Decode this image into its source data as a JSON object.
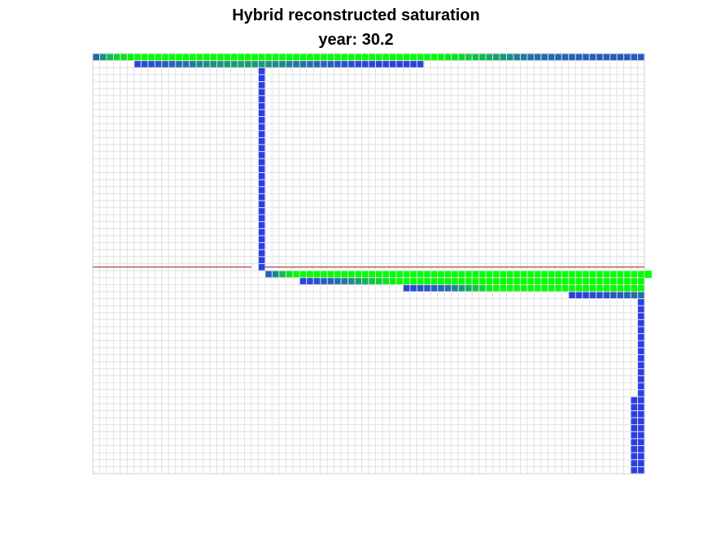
{
  "chart_data": {
    "type": "heatmap",
    "title": "Hybrid reconstructed saturation",
    "subtitle": "year: 30.2",
    "grid": true,
    "grid_cells": {
      "cols": 80,
      "rows": 60
    },
    "colors": {
      "grid_line": "#e1e1e1",
      "grid_border": "#d0d0d0",
      "low_saturation": "#2b3ee6",
      "mid_saturation": "#1f78a0",
      "high_saturation": "#00ff00",
      "fault_line": "#a01010"
    },
    "saturation_regions": [
      {
        "name": "top-layer",
        "row": 0,
        "col_start": 0,
        "values": [
          0.35,
          0.6,
          0.75,
          0.85,
          0.9,
          0.95,
          1,
          1,
          1,
          1,
          1,
          1,
          1,
          1,
          1,
          1,
          1,
          1,
          1,
          1,
          1,
          1,
          1,
          1,
          1,
          1,
          1,
          1,
          1,
          1,
          1,
          1,
          1,
          1,
          1,
          1,
          1,
          1,
          1,
          1,
          1,
          1,
          1,
          1,
          1,
          1,
          1,
          1,
          1,
          1,
          0.97,
          0.93,
          0.9,
          0.86,
          0.82,
          0.78,
          0.74,
          0.7,
          0.66,
          0.62,
          0.58,
          0.54,
          0.5,
          0.47,
          0.44,
          0.41,
          0.38,
          0.36,
          0.34,
          0.32,
          0.31,
          0.3,
          0.29,
          0.28,
          0.27,
          0.26,
          0.25,
          0.25,
          0.25,
          0.25
        ]
      },
      {
        "name": "top-layer-second-row",
        "row": 1,
        "col_start": 6,
        "values": [
          0.05,
          0.1,
          0.16,
          0.22,
          0.28,
          0.34,
          0.4,
          0.45,
          0.5,
          0.55,
          0.58,
          0.6,
          0.62,
          0.63,
          0.64,
          0.65,
          0.64,
          0.63,
          0.62,
          0.6,
          0.58,
          0.56,
          0.53,
          0.5,
          0.46,
          0.42,
          0.38,
          0.33,
          0.28,
          0.23,
          0.18,
          0.14,
          0.1,
          0.07,
          0.04,
          0.02,
          0.01,
          0.01,
          0.01,
          0.01,
          0.01,
          0.01
        ]
      },
      {
        "name": "vertical-column",
        "col": 24,
        "row_start": 2,
        "row_end": 30,
        "value": 0.0
      },
      {
        "name": "mid-layer-1",
        "row": 31,
        "col_start": 25,
        "values": [
          0.3,
          0.55,
          0.75,
          0.9,
          1,
          1,
          1,
          1,
          1,
          1,
          1,
          1,
          1,
          1,
          1,
          1,
          1,
          1,
          1,
          1,
          1,
          1,
          1,
          1,
          1,
          1,
          1,
          1,
          1,
          1,
          1,
          1,
          1,
          1,
          1,
          1,
          1,
          1,
          1,
          1,
          1,
          1,
          1,
          1,
          1,
          1,
          1,
          1,
          1,
          1,
          1,
          1,
          1,
          1,
          1,
          1
        ]
      },
      {
        "name": "mid-layer-2",
        "row": 32,
        "col_start": 30,
        "values": [
          0.05,
          0.1,
          0.18,
          0.26,
          0.34,
          0.42,
          0.5,
          0.58,
          0.65,
          0.72,
          0.78,
          0.84,
          0.9,
          0.95,
          1,
          1,
          1,
          1,
          1,
          1,
          1,
          1,
          1,
          1,
          1,
          1,
          1,
          1,
          1,
          1,
          1,
          1,
          1,
          1,
          1,
          1,
          1,
          1,
          1,
          1,
          1,
          1,
          1,
          1,
          1,
          1,
          1,
          1,
          1,
          1
        ]
      },
      {
        "name": "mid-layer-3",
        "row": 33,
        "col_start": 45,
        "values": [
          0.05,
          0.1,
          0.16,
          0.22,
          0.3,
          0.38,
          0.46,
          0.54,
          0.62,
          0.7,
          0.78,
          0.86,
          0.94,
          1,
          1,
          1,
          1,
          1,
          1,
          1,
          1,
          1,
          1,
          1,
          1,
          1,
          1,
          1,
          1,
          1,
          1,
          1,
          1,
          1,
          1
        ]
      },
      {
        "name": "mid-layer-4",
        "row": 34,
        "col_start": 69,
        "values": [
          0.02,
          0.04,
          0.07,
          0.1,
          0.14,
          0.18,
          0.23,
          0.28,
          0.33,
          0.38,
          0.42
        ]
      },
      {
        "name": "right-column-a",
        "col": 79,
        "row_start": 35,
        "row_end": 59,
        "value": 0.0
      },
      {
        "name": "right-column-b",
        "col": 78,
        "row_start": 49,
        "row_end": 59,
        "value": 0.0
      }
    ],
    "fault_lines": [
      {
        "row_boundary": 31,
        "col_start": 0,
        "col_end": 23
      },
      {
        "row_boundary": 31,
        "col_start": 25,
        "col_end": 80
      }
    ]
  }
}
